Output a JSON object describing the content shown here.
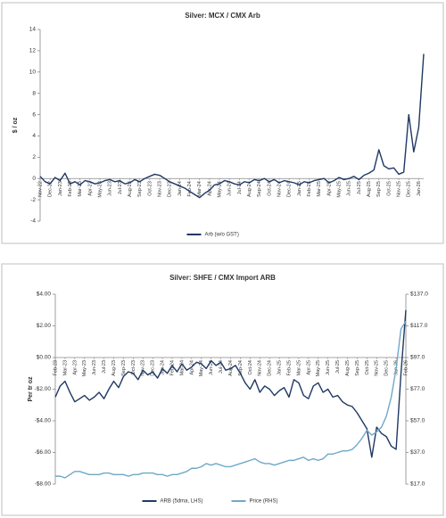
{
  "chart_data": [
    {
      "type": "line",
      "title": "Silver: MCX / CMX Arb",
      "ylabel": "$ / oz",
      "categories": [
        "Nov-22",
        null,
        "Dec-22",
        null,
        "Jan-23",
        null,
        "Feb-23",
        null,
        "Mar-23",
        null,
        "Apr-23",
        null,
        "May-23",
        null,
        "Jun-23",
        null,
        "Jul-23",
        null,
        "Aug-23",
        null,
        "Sep-23",
        null,
        "Oct-23",
        null,
        "Nov-23",
        null,
        "Dec-23",
        null,
        "Jan-24",
        null,
        "Feb-24",
        null,
        "Mar-24",
        null,
        "Apr-24",
        null,
        "May-24",
        null,
        "Jun-24",
        null,
        "Jul-24",
        null,
        "Aug-24",
        null,
        "Sep-24",
        null,
        "Oct-24",
        null,
        "Nov-24",
        null,
        "Dec-24",
        null,
        "Jan-25",
        null,
        "Feb-25",
        null,
        "Mar-25",
        null,
        "Apr-25",
        null,
        "May-25",
        null,
        "Jun-25",
        null,
        "Jul-25",
        null,
        "Aug-25",
        null,
        "Sep-25",
        null,
        "Oct-25",
        null,
        "Nov-25",
        null,
        "Dec-25",
        null,
        "Jan-26",
        null
      ],
      "series": [
        {
          "name": "Arb (w/o GST)",
          "color": "#1f3864",
          "values": [
            0.2,
            -0.3,
            -0.5,
            0.1,
            -0.2,
            0.5,
            -0.5,
            -0.3,
            -0.6,
            -0.2,
            -0.3,
            -0.5,
            -0.4,
            -0.2,
            -0.1,
            -0.3,
            -0.2,
            -0.5,
            -0.4,
            -0.1,
            -0.3,
            0.0,
            0.2,
            0.4,
            0.3,
            0.0,
            -0.3,
            -0.5,
            -0.7,
            -0.9,
            -1.2,
            -1.5,
            -1.8,
            -1.4,
            -1.1,
            -0.6,
            -0.5,
            -0.2,
            -0.3,
            -0.5,
            -0.6,
            -0.3,
            -0.4,
            -0.1,
            -0.2,
            0.0,
            -0.3,
            -0.1,
            -0.4,
            -0.2,
            -0.3,
            -0.4,
            -0.6,
            -0.3,
            -0.4,
            -0.2,
            -0.1,
            0.0,
            -0.4,
            -0.2,
            0.1,
            -0.1,
            0.0,
            0.2,
            -0.1,
            0.3,
            0.5,
            0.8,
            2.7,
            1.2,
            0.9,
            1.0,
            0.4,
            0.6,
            6.0,
            2.5,
            4.8,
            11.7
          ]
        }
      ],
      "ylim": [
        -4,
        14
      ],
      "yticks": [
        -4,
        -2,
        0,
        2,
        4,
        6,
        8,
        10,
        12,
        14
      ],
      "grid": false,
      "legend": "bottom"
    },
    {
      "type": "line",
      "title": "Silver: SHFE / CMX Import ARB",
      "ylabel": "Per tr oz",
      "categories": [
        "Feb-23",
        null,
        "Mar-23",
        null,
        "Apr-23",
        null,
        "May-23",
        null,
        "Jun-23",
        null,
        "Jul-23",
        null,
        "Aug-23",
        null,
        "Sep-23",
        null,
        "Oct-23",
        null,
        "Nov-23",
        null,
        "Dec-23",
        null,
        "Jan-24",
        null,
        "Feb-24",
        null,
        "Mar-24",
        null,
        "Apr-24",
        null,
        "May-24",
        null,
        "Jun-24",
        null,
        "Jul-24",
        null,
        "Aug-24",
        null,
        "Sep-24",
        null,
        "Oct-24",
        null,
        "Nov-24",
        null,
        "Dec-24",
        null,
        "Jan-25",
        null,
        "Feb-25",
        null,
        "Mar-25",
        null,
        "Apr-25",
        null,
        "May-25",
        null,
        "Jun-25",
        null,
        "Jul-25",
        null,
        "Aug-25",
        null,
        "Sep-25",
        null,
        "Oct-25",
        null,
        "Nov-25",
        null,
        "Dec-25",
        null,
        "Jan-26",
        null,
        "Feb-26"
      ],
      "series": [
        {
          "name": "ARB (5dma, LHS)",
          "color": "#1f3864",
          "values": [
            -2.5,
            -1.8,
            -1.5,
            -2.2,
            -2.8,
            -2.6,
            -2.4,
            -2.7,
            -2.5,
            -2.2,
            -2.6,
            -2.0,
            -1.5,
            -1.9,
            -1.2,
            -0.9,
            -1.0,
            -1.4,
            -0.8,
            -1.1,
            -0.9,
            -1.3,
            -0.7,
            -1.0,
            -0.5,
            -0.9,
            -0.4,
            -0.8,
            -0.6,
            -0.3,
            -0.4,
            -0.7,
            -0.2,
            -0.5,
            -0.3,
            -0.8,
            -0.7,
            -0.5,
            -1.0,
            -1.6,
            -2.0,
            -1.4,
            -2.2,
            -1.8,
            -2.0,
            -2.4,
            -2.1,
            -1.9,
            -2.5,
            -1.4,
            -1.6,
            -2.4,
            -2.6,
            -1.8,
            -1.6,
            -2.2,
            -2.0,
            -2.5,
            -2.4,
            -2.8,
            -3.0,
            -3.1,
            -3.5,
            -4.0,
            -4.5,
            -6.3,
            -4.4,
            -4.8,
            -5.0,
            -5.6,
            -5.8,
            -1.0,
            3.0
          ]
        },
        {
          "name": "Price (RHS)",
          "color": "#6fa8c8",
          "axis": "y2",
          "values": [
            22,
            22,
            21,
            23,
            25,
            25,
            24,
            23,
            23,
            23,
            24,
            24,
            23,
            23,
            23,
            22,
            23,
            23,
            24,
            24,
            24,
            23,
            23,
            22,
            23,
            23,
            24,
            25,
            27,
            27,
            28,
            30,
            29,
            30,
            29,
            28,
            28,
            29,
            30,
            31,
            32,
            33,
            31,
            30,
            30,
            29,
            30,
            31,
            32,
            32,
            33,
            34,
            32,
            33,
            32,
            33,
            36,
            36,
            37,
            38,
            38,
            39,
            42,
            46,
            51,
            48,
            50,
            53,
            60,
            72,
            90,
            115,
            120
          ]
        }
      ],
      "ylim": [
        -8,
        4
      ],
      "yticks": [
        {
          "value": -8,
          "label": "-$8.00"
        },
        {
          "value": -6,
          "label": "-$6.00"
        },
        {
          "value": -4,
          "label": "-$4.00"
        },
        {
          "value": -2,
          "label": "-$2.00"
        },
        {
          "value": 0,
          "label": "$0.00"
        },
        {
          "value": 2,
          "label": "$2.00"
        },
        {
          "value": 4,
          "label": "$4.00"
        }
      ],
      "y2lim": [
        17,
        137
      ],
      "y2ticks": [
        {
          "value": 17,
          "label": "$17.0"
        },
        {
          "value": 37,
          "label": "$37.0"
        },
        {
          "value": 57,
          "label": "$57.0"
        },
        {
          "value": 77,
          "label": "$77.0"
        },
        {
          "value": 97,
          "label": "$97.0"
        },
        {
          "value": 117,
          "label": "$117.0"
        },
        {
          "value": 137,
          "label": "$137.0"
        }
      ],
      "negative_tick_color": "#c00000",
      "grid": false,
      "legend": "bottom"
    }
  ]
}
